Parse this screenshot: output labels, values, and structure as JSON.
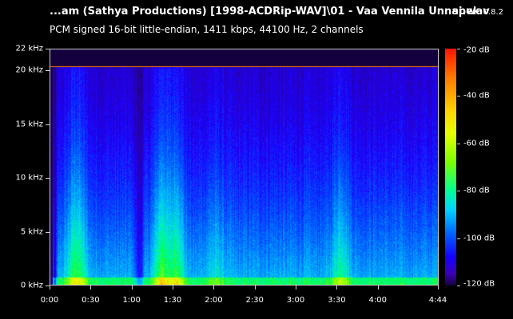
{
  "window": {
    "file_title": "...am (Sathya Productions) [1998-ACDRip-WAV]\\01 - Vaa Vennila Unnai.wav",
    "app_name": "spek",
    "app_version": "0.8.2",
    "stream_info": "PCM signed 16-bit little-endian, 1411 kbps, 44100 Hz, 2 channels"
  },
  "chart_data": {
    "type": "heatmap",
    "y_ticks": [
      "22 kHz",
      "20 kHz",
      "15 kHz",
      "10 kHz",
      "5 kHz",
      "0 kHz"
    ],
    "y_values_khz": [
      22,
      20,
      15,
      10,
      5,
      0
    ],
    "x_ticks": [
      "0:00",
      "0:30",
      "1:00",
      "1:30",
      "2:00",
      "2:30",
      "3:00",
      "3:30",
      "4:00",
      "4:44"
    ],
    "x_values_sec": [
      0,
      30,
      60,
      90,
      120,
      150,
      180,
      210,
      240,
      284
    ],
    "xlim_sec": [
      0,
      284
    ],
    "ylim_khz": [
      0,
      22
    ],
    "colorbar_ticks": [
      "-20 dB",
      "-40 dB",
      "-60 dB",
      "-80 dB",
      "-100 dB",
      "-120 dB"
    ],
    "colorbar_values_db": [
      -20,
      -40,
      -60,
      -80,
      -100,
      -120
    ],
    "lowpass_cutoff_khz": 20.4,
    "colors": {
      "background": "#000000",
      "axis": "#cfcfcf",
      "text": "#ffffff"
    }
  }
}
